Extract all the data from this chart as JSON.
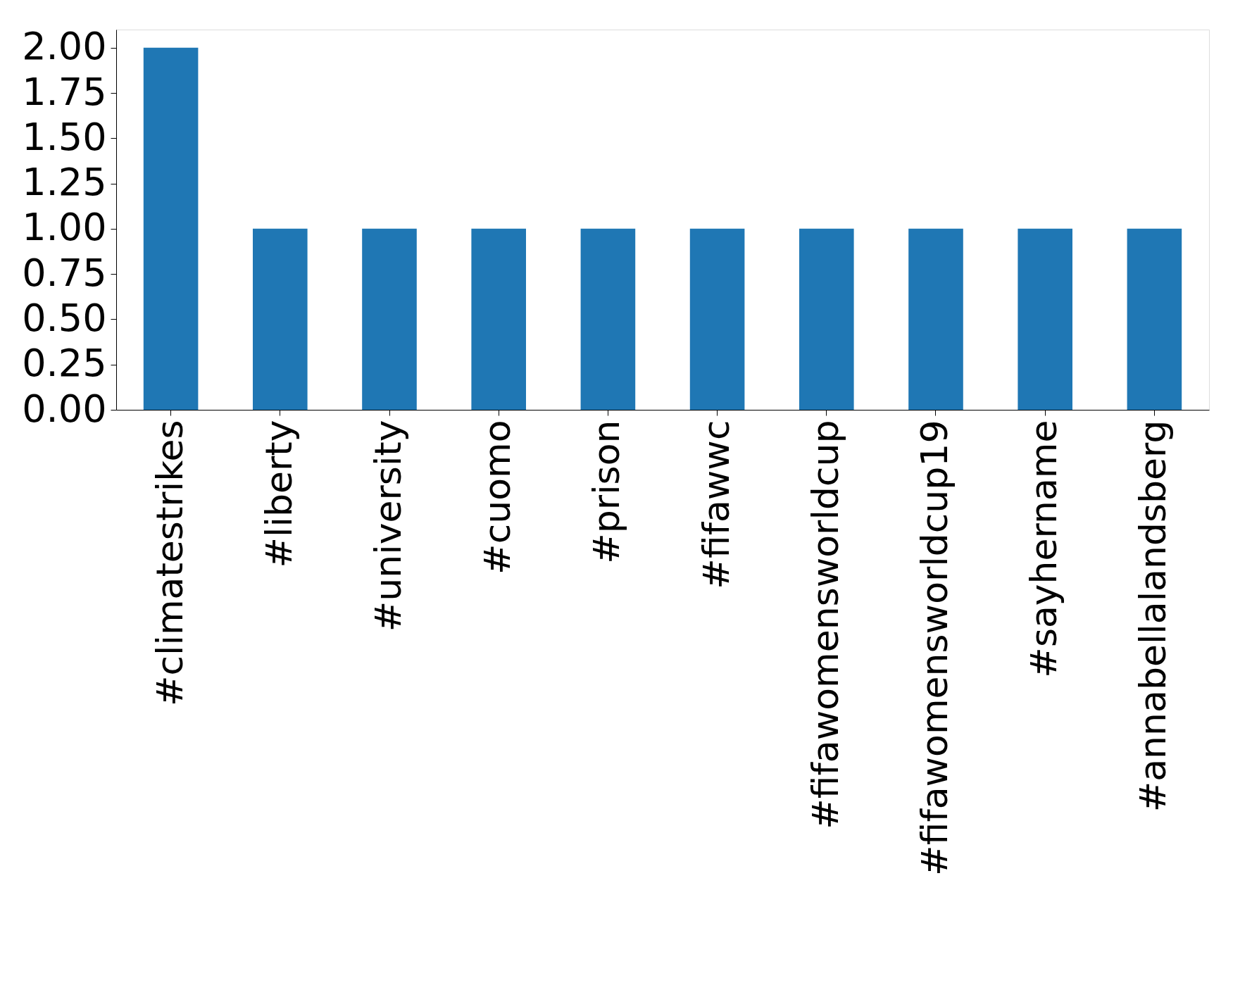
{
  "chart_data": {
    "type": "bar",
    "categories": [
      "#climatestrikes",
      "#liberty",
      "#university",
      "#cuomo",
      "#prison",
      "#fifawwc",
      "#fifawomensworldcup",
      "#fifawomensworldcup19",
      "#sayhername",
      "#annabellalandsberg"
    ],
    "values": [
      2,
      1,
      1,
      1,
      1,
      1,
      1,
      1,
      1,
      1
    ],
    "color": "#1f77b4",
    "ylim": [
      0,
      2.1
    ],
    "yticks": [
      {
        "value": 0,
        "label": "0.00"
      },
      {
        "value": 0.25,
        "label": "0.25"
      },
      {
        "value": 0.5,
        "label": "0.50"
      },
      {
        "value": 0.75,
        "label": "0.75"
      },
      {
        "value": 1,
        "label": "1.00"
      },
      {
        "value": 1.25,
        "label": "1.25"
      },
      {
        "value": 1.5,
        "label": "1.50"
      },
      {
        "value": 1.75,
        "label": "1.75"
      },
      {
        "value": 2,
        "label": "2.00"
      }
    ],
    "grid": false
  }
}
